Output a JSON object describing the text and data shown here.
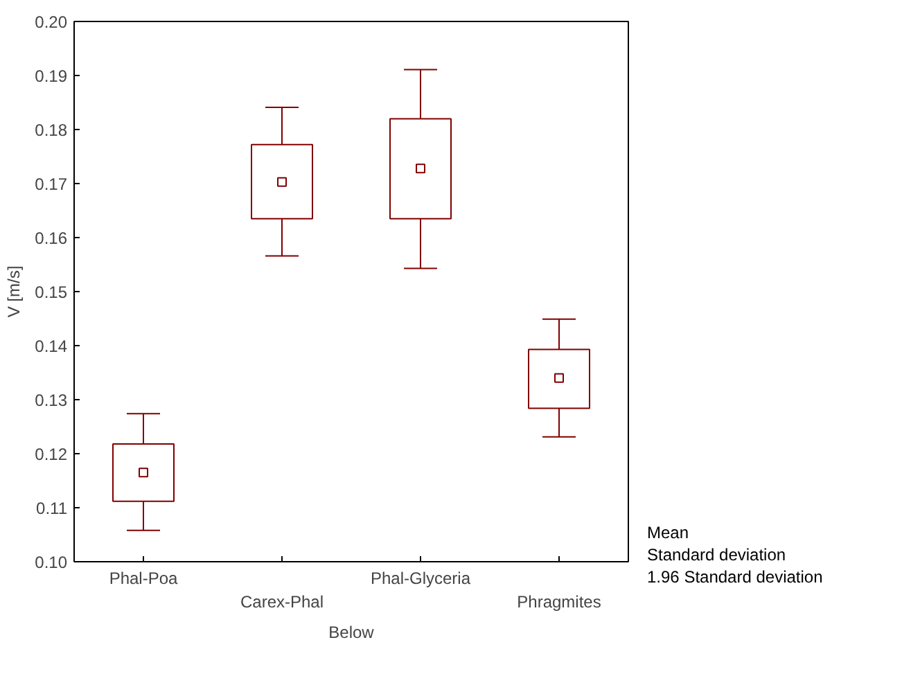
{
  "chart_data": {
    "type": "box",
    "xlabel": "Below",
    "ylabel": "V [m/s]",
    "categories": [
      "Phal-Poa",
      "Carex-Phal",
      "Phal-Glyceria",
      "Phragmites"
    ],
    "color": "#800000",
    "boxes": [
      {
        "low": 0.1058,
        "q1": 0.1112,
        "median": 0.1165,
        "q3": 0.1218,
        "high": 0.1274
      },
      {
        "low": 0.1566,
        "q1": 0.1635,
        "median": 0.1703,
        "q3": 0.1772,
        "high": 0.1841
      },
      {
        "low": 0.1543,
        "q1": 0.1635,
        "median": 0.1728,
        "q3": 0.182,
        "high": 0.1911
      },
      {
        "low": 0.1231,
        "q1": 0.1284,
        "median": 0.134,
        "q3": 0.1393,
        "high": 0.1449
      }
    ],
    "ylim": [
      0.1,
      0.2
    ],
    "yticks": [
      {
        "value": 0.1,
        "label": "0.10"
      },
      {
        "value": 0.11,
        "label": "0.11"
      },
      {
        "value": 0.12,
        "label": "0.12"
      },
      {
        "value": 0.13,
        "label": "0.13"
      },
      {
        "value": 0.14,
        "label": "0.14"
      },
      {
        "value": 0.15,
        "label": "0.15"
      },
      {
        "value": 0.16,
        "label": "0.16"
      },
      {
        "value": 0.17,
        "label": "0.17"
      },
      {
        "value": 0.18,
        "label": "0.18"
      },
      {
        "value": 0.19,
        "label": "0.19"
      },
      {
        "value": 0.2,
        "label": "0.20"
      }
    ],
    "grid": false,
    "marker": "square",
    "annotations": [
      "Mean",
      "Standard deviation",
      "1.96 Standard deviation"
    ]
  }
}
